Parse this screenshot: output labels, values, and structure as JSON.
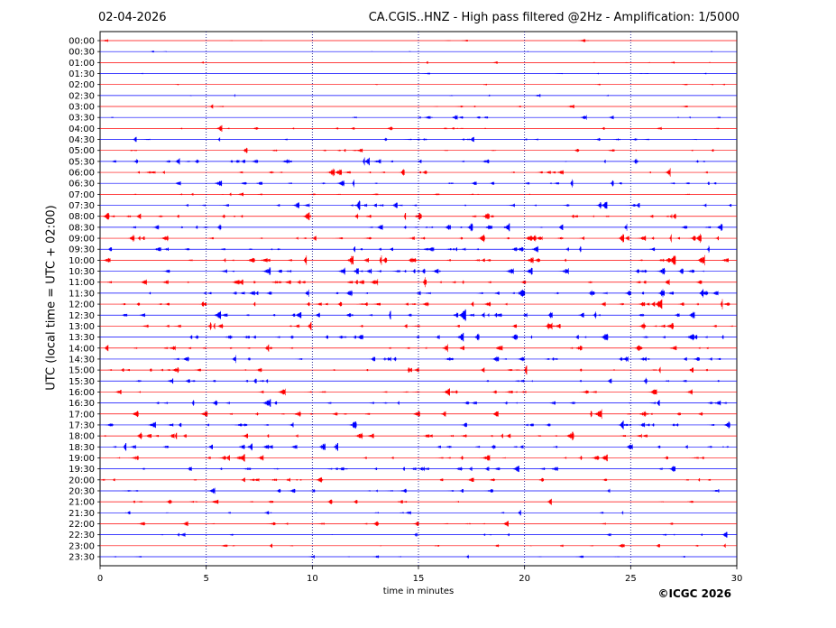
{
  "header": {
    "date": "02-04-2026",
    "title": "CA.CGIS..HNZ - High pass filtered @2Hz - Amplification: 1/5000"
  },
  "footer": {
    "copyright": "©ICGC 2026"
  },
  "chart_data": {
    "type": "line",
    "title": "CA.CGIS..HNZ - High pass filtered @2Hz - Amplification: 1/5000",
    "xlabel": "time in minutes",
    "ylabel": "UTC (local time = UTC + 02:00)",
    "xlim": [
      0,
      30
    ],
    "x_ticks": [
      "0",
      "5",
      "10",
      "15",
      "20",
      "25",
      "30"
    ],
    "x_tick_values": [
      0,
      5,
      10,
      15,
      20,
      25,
      30
    ],
    "grid": "vertical dotted at 5-minute intervals",
    "series_colors": [
      "#ff0000",
      "#0000ff"
    ],
    "rows": [
      "00:00",
      "00:30",
      "01:00",
      "01:30",
      "02:00",
      "02:30",
      "03:00",
      "03:30",
      "04:00",
      "04:30",
      "05:00",
      "05:30",
      "06:00",
      "06:30",
      "07:00",
      "07:30",
      "08:00",
      "08:30",
      "09:00",
      "09:30",
      "10:00",
      "10:30",
      "11:00",
      "11:30",
      "12:00",
      "12:30",
      "13:00",
      "13:30",
      "14:00",
      "14:30",
      "15:00",
      "15:30",
      "16:00",
      "16:30",
      "17:00",
      "17:30",
      "18:00",
      "18:30",
      "19:00",
      "19:30",
      "20:00",
      "20:30",
      "21:00",
      "21:30",
      "22:00",
      "22:30",
      "23:00",
      "23:30"
    ],
    "activity_level": [
      0.5,
      0.4,
      0.8,
      0.5,
      0.5,
      0.4,
      0.7,
      1.3,
      1.5,
      2.0,
      1.8,
      2.8,
      2.6,
      2.3,
      1.6,
      2.6,
      3.0,
      2.7,
      3.2,
      3.0,
      3.2,
      3.0,
      3.2,
      3.3,
      3.3,
      3.3,
      2.9,
      3.1,
      2.8,
      2.8,
      2.7,
      2.1,
      2.1,
      2.5,
      2.5,
      2.7,
      2.8,
      2.9,
      2.7,
      2.5,
      2.1,
      1.7,
      1.6,
      1.3,
      1.5,
      1.3,
      1.3,
      1.0
    ]
  }
}
